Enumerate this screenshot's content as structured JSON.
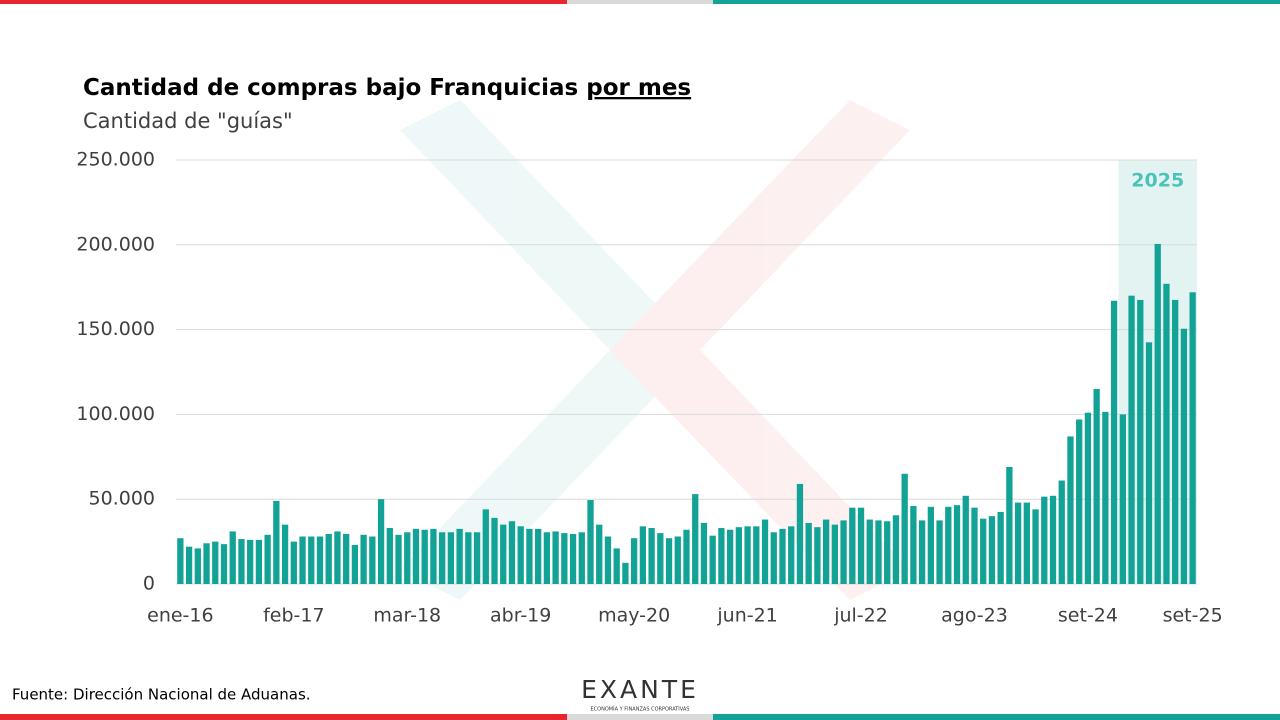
{
  "chart_data": {
    "type": "bar",
    "title": "Cantidad de compras bajo Franquicias",
    "title_underlined": "por mes",
    "subtitle": "Cantidad de \"guías\"",
    "color": "#12a296",
    "grid": true,
    "highlight": {
      "label": "2025",
      "start_index": 108,
      "color": "#e3f3f2",
      "label_color": "#4cc3b8"
    },
    "ylim": [
      0,
      250000
    ],
    "yticks": [
      0,
      {
        "value": 50000,
        "label": "50.000"
      },
      {
        "value": 100000,
        "label": "100.000"
      },
      {
        "value": 150000,
        "label": "150.000"
      },
      {
        "value": 200000,
        "label": "200.000"
      },
      {
        "value": 250000,
        "label": "250.000"
      }
    ],
    "categories": [
      "ene-16",
      null,
      null,
      null,
      null,
      null,
      null,
      null,
      null,
      null,
      null,
      null,
      null,
      "feb-17",
      null,
      null,
      null,
      null,
      null,
      null,
      null,
      null,
      null,
      null,
      null,
      null,
      "mar-18",
      null,
      null,
      null,
      null,
      null,
      null,
      null,
      null,
      null,
      null,
      null,
      null,
      "abr-19",
      null,
      null,
      null,
      null,
      null,
      null,
      null,
      null,
      null,
      null,
      null,
      null,
      "may-20",
      null,
      null,
      null,
      null,
      null,
      null,
      null,
      null,
      null,
      null,
      null,
      null,
      "jun-21",
      null,
      null,
      null,
      null,
      null,
      null,
      null,
      null,
      null,
      null,
      null,
      null,
      "jul-22",
      null,
      null,
      null,
      null,
      null,
      null,
      null,
      null,
      null,
      null,
      null,
      null,
      "ago-23",
      null,
      null,
      null,
      null,
      null,
      null,
      null,
      null,
      null,
      null,
      null,
      null,
      "set-24",
      null,
      null,
      null,
      null,
      null,
      null,
      null,
      null,
      null,
      null,
      null,
      "set-25"
    ],
    "values": [
      27000,
      22000,
      21000,
      24000,
      25000,
      23500,
      31000,
      26500,
      26000,
      26000,
      29000,
      49000,
      35000,
      25000,
      28000,
      28000,
      28000,
      29500,
      31000,
      29500,
      23000,
      29000,
      28000,
      50000,
      33000,
      29000,
      30500,
      32500,
      32000,
      32500,
      30500,
      30500,
      32500,
      30500,
      30500,
      44000,
      39000,
      35000,
      37000,
      34000,
      32500,
      32500,
      30500,
      31000,
      30000,
      29500,
      30500,
      49500,
      35000,
      28000,
      21000,
      12500,
      27000,
      34000,
      33000,
      30000,
      27000,
      28000,
      32000,
      53000,
      36000,
      28500,
      33000,
      32000,
      33500,
      34000,
      34000,
      38000,
      30500,
      32500,
      34000,
      59000,
      36000,
      33500,
      38000,
      35000,
      37500,
      45000,
      45000,
      38000,
      37500,
      37000,
      40500,
      65000,
      46000,
      37500,
      45500,
      37500,
      45500,
      46500,
      52000,
      45000,
      38500,
      40000,
      42500,
      69000,
      48000,
      48000,
      44000,
      51500,
      52000,
      61000,
      87000,
      97000,
      101000,
      115000,
      101500,
      167000,
      100000,
      170000,
      167500,
      142500,
      200500,
      177000,
      167500,
      150500,
      172000
    ]
  },
  "source": "Fuente: Dirección Nacional de Aduanas.",
  "logo": {
    "name": "EXANTE",
    "tagline": "ECONOMÍA Y FINANZAS CORPORATIVAS"
  }
}
